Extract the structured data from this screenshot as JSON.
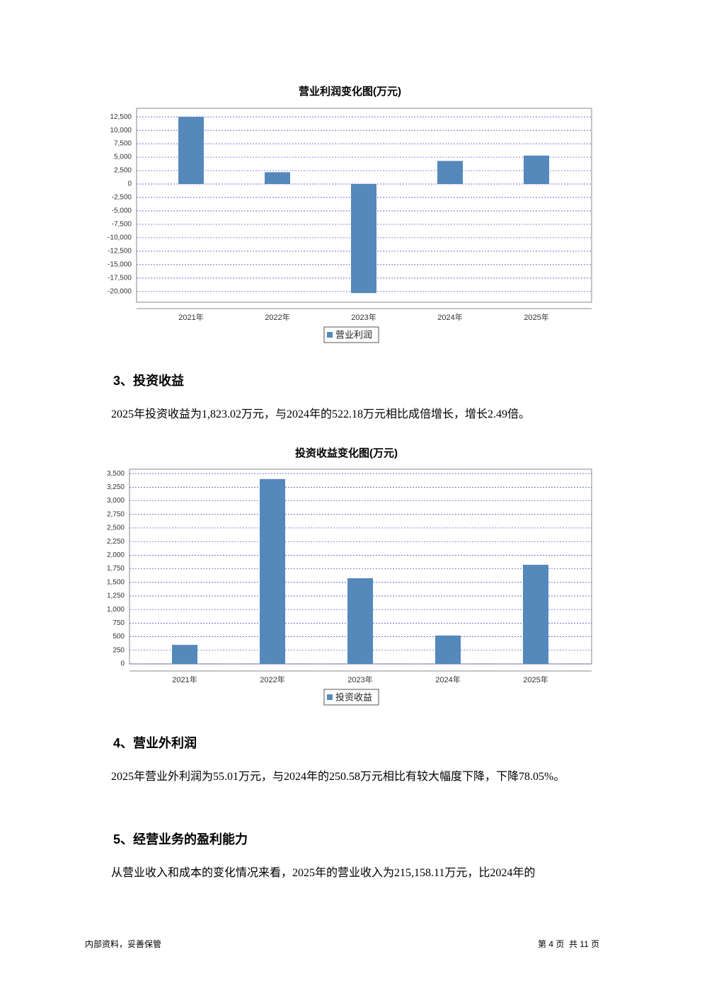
{
  "chart_data": [
    {
      "type": "bar",
      "title": "营业利润变化图(万元)",
      "categories": [
        "2021年",
        "2022年",
        "2023年",
        "2024年",
        "2025年"
      ],
      "series": [
        {
          "name": "营业利润",
          "color": "#5588bb",
          "values": [
            12500,
            2200,
            -20300,
            4300,
            5300
          ]
        }
      ],
      "ylim": [
        -22000,
        14100
      ],
      "yticks": [
        {
          "value": 12500,
          "label": "12,500"
        },
        {
          "value": 10000,
          "label": "10,000"
        },
        {
          "value": 7500,
          "label": "7,500"
        },
        {
          "value": 5000,
          "label": "5,000"
        },
        {
          "value": 2500,
          "label": "2,500"
        },
        0,
        {
          "value": -2500,
          "label": "-2,500"
        },
        {
          "value": -5000,
          "label": "-5,000"
        },
        {
          "value": -7500,
          "label": "-7,500"
        },
        {
          "value": -10000,
          "label": "-10,000"
        },
        {
          "value": -12500,
          "label": "-12,500"
        },
        {
          "value": -15000,
          "label": "-15,000"
        },
        {
          "value": -17500,
          "label": "-17,500"
        },
        {
          "value": -20000,
          "label": "-20,000"
        }
      ],
      "grid": true
    },
    {
      "type": "bar",
      "title": "投资收益变化图(万元)",
      "categories": [
        "2021年",
        "2022年",
        "2023年",
        "2024年",
        "2025年"
      ],
      "series": [
        {
          "name": "投资收益",
          "color": "#5588bb",
          "values": [
            350,
            3400,
            1575,
            522.18,
            1823.02
          ]
        }
      ],
      "ylim": [
        0,
        3580
      ],
      "yticks": [
        0,
        250,
        500,
        750,
        {
          "value": 1000,
          "label": "1,000"
        },
        {
          "value": 1250,
          "label": "1,250"
        },
        {
          "value": 1500,
          "label": "1,500"
        },
        {
          "value": 1750,
          "label": "1,750"
        },
        {
          "value": 2000,
          "label": "2,000"
        },
        {
          "value": 2250,
          "label": "2,250"
        },
        {
          "value": 2500,
          "label": "2,500"
        },
        {
          "value": 2750,
          "label": "2,750"
        },
        {
          "value": 3000,
          "label": "3,000"
        },
        {
          "value": 3250,
          "label": "3,250"
        },
        {
          "value": 3500,
          "label": "3,500"
        }
      ],
      "grid": true
    }
  ],
  "sections": [
    {
      "heading": "3、投资收益",
      "text": "2025年投资收益为1,823.02万元，与2024年的522.18万元相比成倍增长，增长2.49倍。"
    },
    {
      "heading": "4、营业外利润",
      "text": "2025年营业外利润为55.01万元，与2024年的250.58万元相比有较大幅度下降，下降78.05%。"
    },
    {
      "heading": "5、经营业务的盈利能力",
      "text": "从营业收入和成本的变化情况来看，2025年的营业收入为215,158.11万元，比2024年的"
    }
  ],
  "footer": {
    "left": "内部资料，妥善保管",
    "right": "第 4 页  共 11 页"
  }
}
